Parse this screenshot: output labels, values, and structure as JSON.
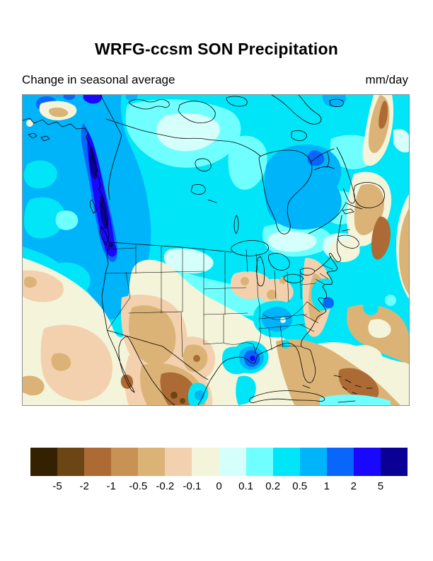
{
  "header": {
    "title": "WRFG-ccsm SON Precipitation",
    "subtitle_left": "Change in seasonal average",
    "subtitle_right": "mm/day"
  },
  "palette": {
    "brown_darkest": "#332102",
    "brown_dark": "#6b4513",
    "sienna": "#ad6a35",
    "tan_dark": "#c79254",
    "tan": "#dbb377",
    "peach": "#f3d1ae",
    "cream": "#f4f4da",
    "cyan_palest": "#d5fffb",
    "cyan_pale": "#70ffff",
    "cyan": "#00e6f8",
    "sky_blue": "#00b4fa",
    "blue": "#0866fb",
    "strong_blue": "#1908fc",
    "navy": "#0a0096"
  },
  "colorbar": {
    "tick_labels": [
      "-5",
      "-2",
      "-1",
      "-0.5",
      "-0.2",
      "-0.1",
      "0",
      "0.1",
      "0.2",
      "0.5",
      "1",
      "2",
      "5"
    ],
    "cells": [
      "brown_darkest",
      "brown_dark",
      "sienna",
      "tan_dark",
      "tan",
      "peach",
      "cream",
      "cyan_palest",
      "cyan_pale",
      "cyan",
      "sky_blue",
      "blue",
      "strong_blue",
      "navy"
    ]
  },
  "chart_data": {
    "type": "heatmap",
    "title": "WRFG-ccsm SON Precipitation",
    "subtitle": "Change in seasonal average",
    "units": "mm/day",
    "region": "North America (Alaska and arctic Canada to Cuba, Pacific to western Atlantic), filled-contour map with coastlines and US state borders",
    "legend_position": "bottom",
    "contour_levels": [
      -5,
      -2,
      -1,
      -0.5,
      -0.2,
      -0.1,
      0,
      0.1,
      0.2,
      0.5,
      1,
      2,
      5
    ],
    "level_colors": [
      "#332102",
      "#6b4513",
      "#ad6a35",
      "#c79254",
      "#dbb377",
      "#f3d1ae",
      "#f4f4da",
      "#d5fffb",
      "#70ffff",
      "#00e6f8",
      "#00b4fa",
      "#0866fb",
      "#1908fc",
      "#0a0096"
    ],
    "readings": [
      {
        "area": "British Columbia / SE Alaska coast",
        "value_mm_day": "+2 to >+5 (dark blue/navy band)"
      },
      {
        "area": "Northeast Pacific Ocean and western Canada",
        "value_mm_day": "+0.5 to +1"
      },
      {
        "area": "Hudson Bay and central Quebec",
        "value_mm_day": "+0.5 to +1"
      },
      {
        "area": "Arctic Canada and north-central Canada",
        "value_mm_day": "+0.1 to +0.5"
      },
      {
        "area": "Northern US plains and Great Lakes",
        "value_mm_day": "0 to +0.5"
      },
      {
        "area": "US Southwest (NV/UT/AZ/NM)",
        "value_mm_day": "-0.2 to -0.5"
      },
      {
        "area": "Northwest Mexico and Baja California",
        "value_mm_day": "-0.5 to -2"
      },
      {
        "area": "Gulf coast / Southeast US",
        "value_mm_day": "mixed, -0.5 to +0.5"
      },
      {
        "area": "Louisiana coast local maximum",
        "value_mm_day": "+1 to +2"
      },
      {
        "area": "Florida Straits / Bahamas / western Atlantic",
        "value_mm_day": "-0.5 to -2"
      },
      {
        "area": "Atlantic off Newfoundland and Nova Scotia",
        "value_mm_day": "-0.2 to -1"
      }
    ]
  }
}
